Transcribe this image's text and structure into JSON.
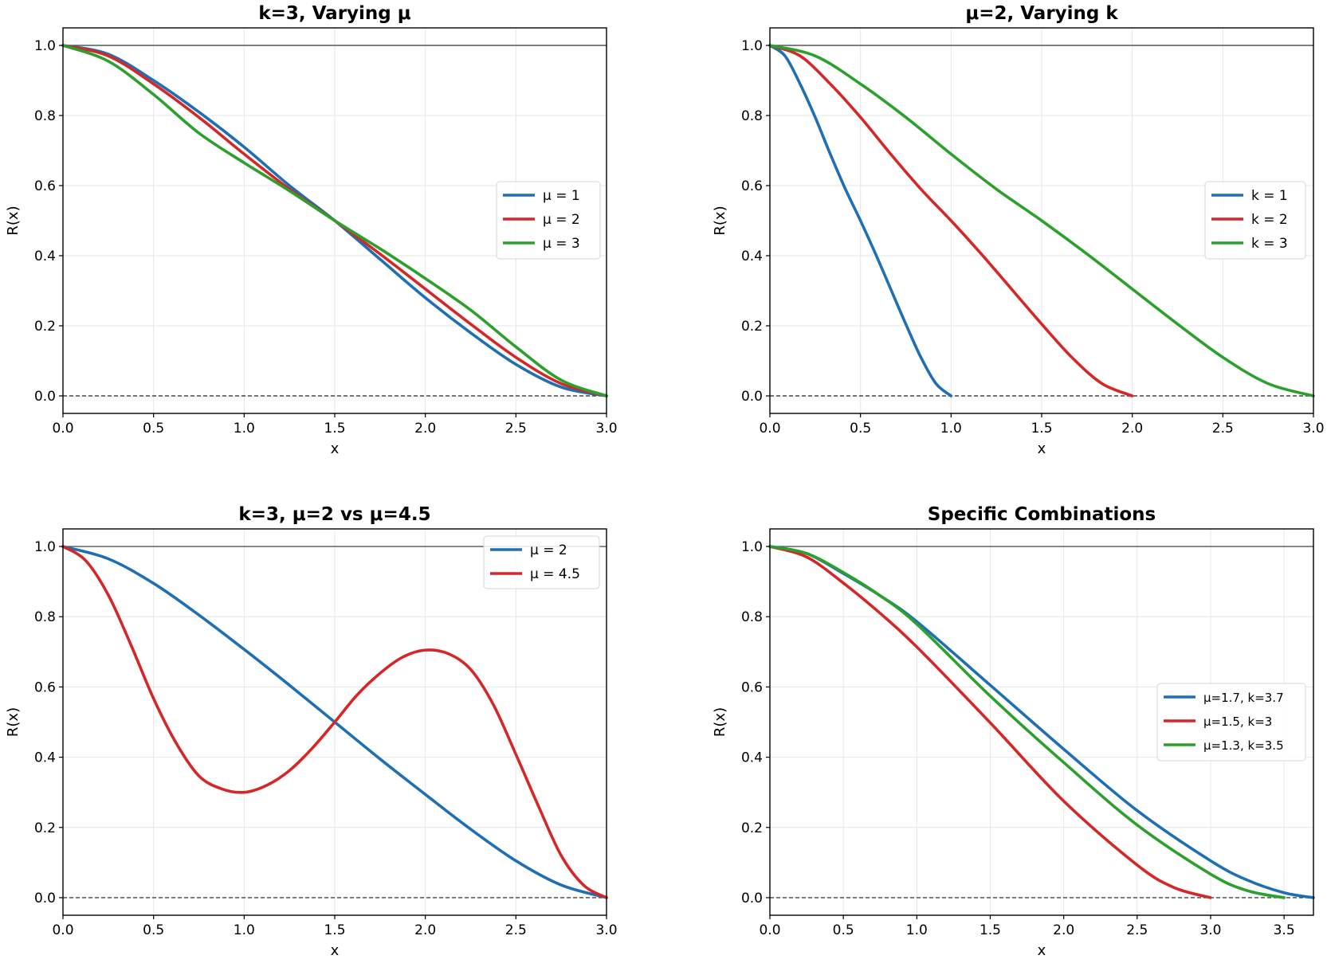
{
  "colors": {
    "blue": "#1f6fb4",
    "red": "#d62728",
    "green": "#2ca02c"
  },
  "chart_data": [
    {
      "type": "line",
      "title": "k=3, Varying μ",
      "xlabel": "x",
      "ylabel": "R(x)",
      "xlim": [
        0,
        3.0
      ],
      "ylim": [
        -0.05,
        1.05
      ],
      "xticks": [
        "0.0",
        "0.5",
        "1.0",
        "1.5",
        "2.0",
        "2.5",
        "3.0"
      ],
      "yticks": [
        "0.0",
        "0.2",
        "0.4",
        "0.6",
        "0.8",
        "1.0"
      ],
      "grid": true,
      "reference_lines": [
        {
          "y": 1.0,
          "style": "solid"
        },
        {
          "y": 0.0,
          "style": "dashed"
        }
      ],
      "legend_position": "center-right",
      "series": [
        {
          "name": "μ = 1",
          "color": "blue",
          "x": [
            0,
            0.25,
            0.5,
            0.75,
            1.0,
            1.25,
            1.5,
            1.75,
            2.0,
            2.25,
            2.5,
            2.75,
            3.0
          ],
          "y": [
            1.0,
            0.975,
            0.9,
            0.81,
            0.71,
            0.6,
            0.5,
            0.39,
            0.28,
            0.18,
            0.09,
            0.025,
            0.0
          ]
        },
        {
          "name": "μ = 2",
          "color": "red",
          "x": [
            0,
            0.25,
            0.5,
            0.75,
            1.0,
            1.25,
            1.5,
            1.75,
            2.0,
            2.25,
            2.5,
            2.75,
            3.0
          ],
          "y": [
            1.0,
            0.97,
            0.89,
            0.795,
            0.69,
            0.59,
            0.5,
            0.405,
            0.305,
            0.205,
            0.11,
            0.035,
            0.0
          ]
        },
        {
          "name": "μ = 3",
          "color": "green",
          "x": [
            0,
            0.25,
            0.5,
            0.75,
            1.0,
            1.25,
            1.5,
            1.75,
            2.0,
            2.25,
            2.5,
            2.75,
            3.0
          ],
          "y": [
            1.0,
            0.955,
            0.86,
            0.75,
            0.665,
            0.585,
            0.5,
            0.42,
            0.335,
            0.245,
            0.14,
            0.045,
            0.0
          ]
        }
      ]
    },
    {
      "type": "line",
      "title": "μ=2, Varying k",
      "xlabel": "x",
      "ylabel": "R(x)",
      "xlim": [
        0,
        3.0
      ],
      "ylim": [
        -0.05,
        1.05
      ],
      "xticks": [
        "0.0",
        "0.5",
        "1.0",
        "1.5",
        "2.0",
        "2.5",
        "3.0"
      ],
      "yticks": [
        "0.0",
        "0.2",
        "0.4",
        "0.6",
        "0.8",
        "1.0"
      ],
      "grid": true,
      "reference_lines": [
        {
          "y": 1.0,
          "style": "solid"
        },
        {
          "y": 0.0,
          "style": "dashed"
        }
      ],
      "legend_position": "center-right",
      "series": [
        {
          "name": "k = 1",
          "color": "blue",
          "x": [
            0,
            0.0833,
            0.1667,
            0.25,
            0.3333,
            0.4167,
            0.5,
            0.5833,
            0.6667,
            0.75,
            0.8333,
            0.9167,
            1.0
          ],
          "y": [
            1.0,
            0.97,
            0.89,
            0.795,
            0.69,
            0.59,
            0.5,
            0.405,
            0.305,
            0.205,
            0.11,
            0.035,
            0.0
          ]
        },
        {
          "name": "k = 2",
          "color": "red",
          "x": [
            0,
            0.1667,
            0.3333,
            0.5,
            0.6667,
            0.8333,
            1.0,
            1.1667,
            1.3333,
            1.5,
            1.6667,
            1.8333,
            2.0
          ],
          "y": [
            1.0,
            0.97,
            0.89,
            0.795,
            0.69,
            0.59,
            0.5,
            0.405,
            0.305,
            0.205,
            0.11,
            0.035,
            0.0
          ]
        },
        {
          "name": "k = 3",
          "color": "green",
          "x": [
            0,
            0.25,
            0.5,
            0.75,
            1.0,
            1.25,
            1.5,
            1.75,
            2.0,
            2.25,
            2.5,
            2.75,
            3.0
          ],
          "y": [
            1.0,
            0.97,
            0.89,
            0.795,
            0.69,
            0.59,
            0.5,
            0.405,
            0.305,
            0.205,
            0.11,
            0.035,
            0.0
          ]
        }
      ]
    },
    {
      "type": "line",
      "title": "k=3, μ=2 vs μ=4.5",
      "xlabel": "x",
      "ylabel": "R(x)",
      "xlim": [
        0,
        3.0
      ],
      "ylim": [
        -0.05,
        1.05
      ],
      "xticks": [
        "0.0",
        "0.5",
        "1.0",
        "1.5",
        "2.0",
        "2.5",
        "3.0"
      ],
      "yticks": [
        "0.0",
        "0.2",
        "0.4",
        "0.6",
        "0.8",
        "1.0"
      ],
      "grid": true,
      "reference_lines": [
        {
          "y": 1.0,
          "style": "solid"
        },
        {
          "y": 0.0,
          "style": "dashed"
        }
      ],
      "legend_position": "upper-right",
      "series": [
        {
          "name": "μ = 2",
          "color": "blue",
          "x": [
            0,
            0.25,
            0.5,
            0.75,
            1.0,
            1.25,
            1.5,
            1.75,
            2.0,
            2.25,
            2.5,
            2.75,
            3.0
          ],
          "y": [
            1.0,
            0.965,
            0.895,
            0.805,
            0.707,
            0.605,
            0.5,
            0.395,
            0.294,
            0.195,
            0.105,
            0.036,
            0.0
          ]
        },
        {
          "name": "μ = 4.5",
          "color": "red",
          "x": [
            0,
            0.125,
            0.25,
            0.375,
            0.5,
            0.625,
            0.75,
            0.875,
            1.0,
            1.125,
            1.25,
            1.375,
            1.5,
            1.625,
            1.75,
            1.875,
            2.0,
            2.125,
            2.25,
            2.375,
            2.5,
            2.625,
            2.75,
            2.875,
            3.0
          ],
          "y": [
            1.0,
            0.96,
            0.862,
            0.72,
            0.567,
            0.44,
            0.347,
            0.31,
            0.3,
            0.32,
            0.362,
            0.425,
            0.5,
            0.578,
            0.639,
            0.685,
            0.705,
            0.695,
            0.65,
            0.55,
            0.408,
            0.26,
            0.12,
            0.035,
            0.0
          ]
        }
      ]
    },
    {
      "type": "line",
      "title": "Specific Combinations",
      "xlabel": "x",
      "ylabel": "R(x)",
      "xlim": [
        0,
        3.7
      ],
      "ylim": [
        -0.05,
        1.05
      ],
      "xticks": [
        "0.0",
        "0.5",
        "1.0",
        "1.5",
        "2.0",
        "2.5",
        "3.0",
        "3.5"
      ],
      "yticks": [
        "0.0",
        "0.2",
        "0.4",
        "0.6",
        "0.8",
        "1.0"
      ],
      "grid": true,
      "reference_lines": [
        {
          "y": 1.0,
          "style": "solid"
        },
        {
          "y": 0.0,
          "style": "dashed"
        }
      ],
      "legend_position": "center-right",
      "series": [
        {
          "name": "μ=1.7, k=3.7",
          "color": "blue",
          "x": [
            0,
            0.25,
            0.5,
            0.75,
            1.0,
            1.5,
            2.0,
            2.5,
            3.0,
            3.25,
            3.5,
            3.7
          ],
          "y": [
            1.0,
            0.98,
            0.923,
            0.86,
            0.786,
            0.605,
            0.423,
            0.248,
            0.105,
            0.05,
            0.014,
            0.0
          ]
        },
        {
          "name": "μ=1.5, k=3",
          "color": "red",
          "x": [
            0,
            0.25,
            0.5,
            0.75,
            1.0,
            1.5,
            2.0,
            2.5,
            2.75,
            3.0
          ],
          "y": [
            1.0,
            0.97,
            0.896,
            0.81,
            0.714,
            0.498,
            0.275,
            0.093,
            0.029,
            0.0
          ]
        },
        {
          "name": "μ=1.3, k=3.5",
          "color": "green",
          "x": [
            0,
            0.25,
            0.5,
            0.75,
            1.0,
            1.5,
            2.0,
            2.5,
            3.0,
            3.25,
            3.5
          ],
          "y": [
            1.0,
            0.98,
            0.926,
            0.86,
            0.779,
            0.574,
            0.385,
            0.207,
            0.067,
            0.02,
            0.0
          ]
        }
      ]
    }
  ]
}
